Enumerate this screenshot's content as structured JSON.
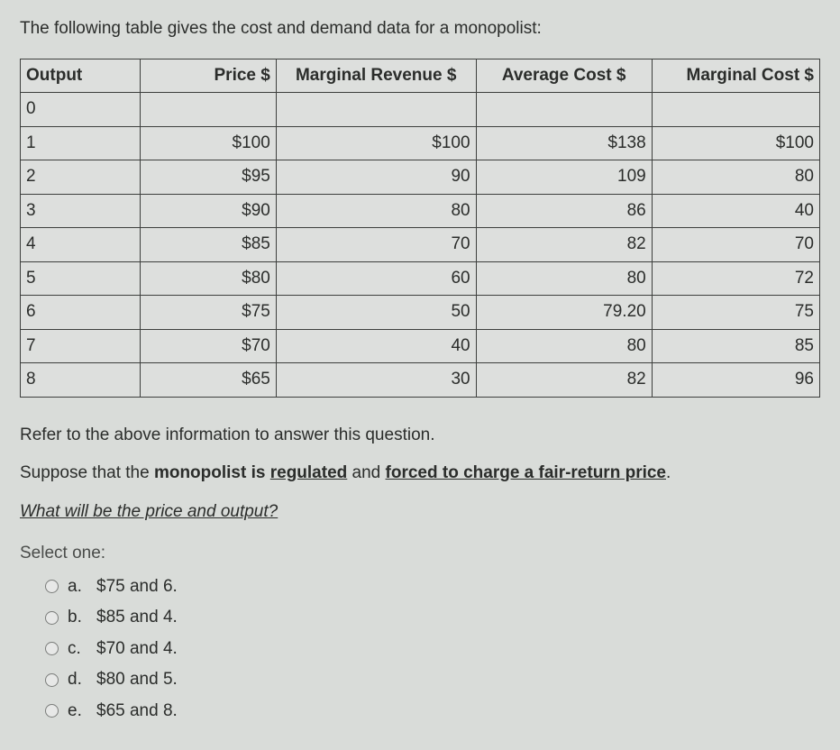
{
  "intro": "The following table gives the cost and demand data for a monopolist:",
  "table": {
    "columns": [
      "Output",
      "Price $",
      "Marginal Revenue $",
      "Average Cost $",
      "Marginal Cost $"
    ],
    "header_align": [
      "left",
      "right",
      "center",
      "center",
      "center-right"
    ],
    "rows": [
      [
        "0",
        "",
        "",
        "",
        ""
      ],
      [
        "1",
        "$100",
        "$100",
        "$138",
        "$100"
      ],
      [
        "2",
        "$95",
        "90",
        "109",
        "80"
      ],
      [
        "3",
        "$90",
        "80",
        "86",
        "40"
      ],
      [
        "4",
        "$85",
        "70",
        "82",
        "70"
      ],
      [
        "5",
        "$80",
        "60",
        "80",
        "72"
      ],
      [
        "6",
        "$75",
        "50",
        "79.20",
        "75"
      ],
      [
        "7",
        "$70",
        "40",
        "80",
        "85"
      ],
      [
        "8",
        "$65",
        "30",
        "82",
        "96"
      ]
    ],
    "border_color": "#3d3f3d",
    "cell_bg": "#dddfdd"
  },
  "question": {
    "line1": "Refer to the above information to answer this question.",
    "line2_prefix": "Suppose that the ",
    "line2_bold": "monopolist is ",
    "line2_ul_a": "regulated",
    "line2_mid": " and ",
    "line2_ul_b": "forced to charge a fair-return price",
    "line2_suffix": ".",
    "line3": "What will be the price and output?"
  },
  "select_label": "Select one:",
  "options": [
    {
      "letter": "a.",
      "text": "$75 and 6."
    },
    {
      "letter": "b.",
      "text": "$85 and 4."
    },
    {
      "letter": "c.",
      "text": "$70 and 4."
    },
    {
      "letter": "d.",
      "text": "$80 and 5."
    },
    {
      "letter": "e.",
      "text": "$65 and 8."
    }
  ]
}
